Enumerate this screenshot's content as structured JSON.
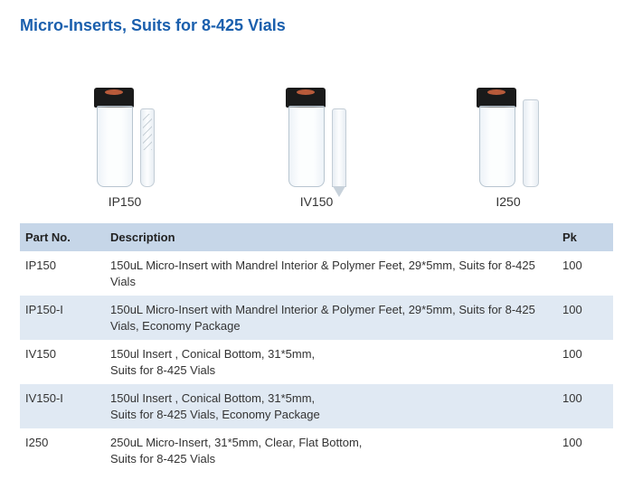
{
  "title": {
    "text": "Micro-Inserts, Suits for 8-425 Vials",
    "color": "#1a5fad",
    "fontsize": 18
  },
  "products": [
    {
      "label": "IP150",
      "insert_type": "spring"
    },
    {
      "label": "IV150",
      "insert_type": "conical"
    },
    {
      "label": "I250",
      "insert_type": "flat"
    }
  ],
  "table": {
    "header_bg": "#c6d6e8",
    "row_alt_bg": "#e0e9f3",
    "columns": [
      {
        "key": "part",
        "label": "Part No."
      },
      {
        "key": "desc",
        "label": "Description"
      },
      {
        "key": "pk",
        "label": "Pk"
      }
    ],
    "rows": [
      {
        "part": "IP150",
        "desc": "150uL Micro-Insert with Mandrel Interior & Polymer Feet, 29*5mm, Suits for 8-425 Vials",
        "pk": "100"
      },
      {
        "part": "IP150-I",
        "desc": "150uL Micro-Insert with Mandrel Interior & Polymer Feet, 29*5mm, Suits for 8-425 Vials, Economy Package",
        "pk": "100"
      },
      {
        "part": "IV150",
        "desc": "150ul Insert , Conical Bottom, 31*5mm,\nSuits for 8-425 Vials",
        "pk": "100"
      },
      {
        "part": "IV150-I",
        "desc": "150ul Insert , Conical Bottom, 31*5mm,\nSuits for 8-425 Vials, Economy Package",
        "pk": "100"
      },
      {
        "part": "I250",
        "desc": "250uL Micro-Insert, 31*5mm, Clear, Flat Bottom,\nSuits for 8-425 Vials",
        "pk": "100"
      }
    ]
  }
}
